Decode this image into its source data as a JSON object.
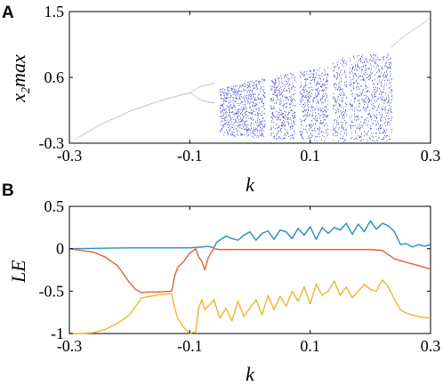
{
  "chart_data": [
    {
      "panel": "A",
      "type": "scatter",
      "subtype": "bifurcation-diagram",
      "xlabel": "k",
      "ylabel_main": "x",
      "ylabel_sub": "2",
      "ylabel_rest": "max",
      "xlim": [
        -0.3,
        0.3
      ],
      "ylim": [
        -0.3,
        1.5
      ],
      "xticks": [
        -0.3,
        -0.1,
        0.1,
        0.3
      ],
      "xtick_labels": [
        "-0.3",
        "-0.1",
        "0.1",
        "0.3"
      ],
      "yticks": [
        -0.3,
        0.6,
        1.5
      ],
      "ytick_labels": [
        "-0.3",
        "0.6",
        "1.5"
      ],
      "colors": {
        "periodic": "#b8b8b8",
        "chaotic": "#5a5ad6"
      },
      "branches": [
        {
          "name": "period-1",
          "x": [
            -0.29,
            -0.25,
            -0.2,
            -0.15,
            -0.12,
            -0.1
          ],
          "y": [
            -0.24,
            -0.05,
            0.14,
            0.28,
            0.35,
            0.39
          ]
        },
        {
          "name": "period-2-upper",
          "x": [
            -0.1,
            -0.085,
            -0.07,
            -0.06
          ],
          "y": [
            0.39,
            0.47,
            0.5,
            0.52
          ]
        },
        {
          "name": "period-2-lower",
          "x": [
            -0.1,
            -0.085,
            -0.07,
            -0.06
          ],
          "y": [
            0.39,
            0.3,
            0.26,
            0.25
          ]
        },
        {
          "name": "tail",
          "x": [
            0.235,
            0.25,
            0.265,
            0.28,
            0.29,
            0.3
          ],
          "y": [
            1.02,
            1.13,
            1.22,
            1.3,
            1.36,
            1.42
          ]
        }
      ],
      "chaos_band": {
        "x": [
          -0.05,
          0.0,
          0.05,
          0.1,
          0.14,
          0.16,
          0.2,
          0.235
        ],
        "y_min": [
          -0.18,
          -0.22,
          -0.24,
          -0.26,
          -0.27,
          -0.28,
          -0.28,
          -0.28
        ],
        "y_max": [
          0.45,
          0.55,
          0.63,
          0.72,
          0.8,
          0.9,
          0.92,
          0.93
        ],
        "windows": [
          [
            0.025,
            0.033
          ],
          [
            0.075,
            0.082
          ],
          [
            0.13,
            0.137
          ],
          [
            0.16,
            0.165
          ]
        ]
      },
      "seed": 7
    },
    {
      "panel": "B",
      "type": "line",
      "xlabel": "k",
      "ylabel": "LE",
      "xlim": [
        -0.3,
        0.3
      ],
      "ylim": [
        -1,
        0.5
      ],
      "xticks": [
        -0.3,
        -0.1,
        0.1,
        0.3
      ],
      "xtick_labels": [
        "-0.3",
        "-0.1",
        "0.1",
        "0.3"
      ],
      "yticks": [
        0.5,
        0,
        -0.5,
        -1
      ],
      "ytick_labels": [
        "0.5",
        "0",
        "-0.5",
        "-1"
      ],
      "series": [
        {
          "color": "#1f8fbf",
          "x": [
            -0.3,
            -0.25,
            -0.2,
            -0.15,
            -0.1,
            -0.08,
            -0.07,
            -0.06,
            -0.055,
            -0.05,
            -0.04,
            -0.03,
            -0.02,
            -0.01,
            0.0,
            0.01,
            0.02,
            0.03,
            0.04,
            0.05,
            0.06,
            0.07,
            0.08,
            0.09,
            0.1,
            0.11,
            0.12,
            0.13,
            0.14,
            0.15,
            0.16,
            0.17,
            0.18,
            0.19,
            0.2,
            0.21,
            0.22,
            0.23,
            0.24,
            0.25,
            0.26,
            0.27,
            0.28,
            0.29,
            0.3
          ],
          "y": [
            0.0,
            0.005,
            0.01,
            0.01,
            0.01,
            0.02,
            0.03,
            0.01,
            0.08,
            0.1,
            0.15,
            0.12,
            0.1,
            0.16,
            0.2,
            0.1,
            0.18,
            0.21,
            0.11,
            0.22,
            0.2,
            0.12,
            0.24,
            0.16,
            0.26,
            0.11,
            0.25,
            0.18,
            0.25,
            0.22,
            0.3,
            0.17,
            0.29,
            0.2,
            0.33,
            0.23,
            0.3,
            0.27,
            0.2,
            0.05,
            0.06,
            0.02,
            0.05,
            0.03,
            0.05
          ]
        },
        {
          "color": "#e0603a",
          "x": [
            -0.3,
            -0.26,
            -0.24,
            -0.22,
            -0.21,
            -0.2,
            -0.19,
            -0.18,
            -0.17,
            -0.15,
            -0.13,
            -0.125,
            -0.12,
            -0.11,
            -0.1,
            -0.09,
            -0.085,
            -0.08,
            -0.075,
            -0.07,
            -0.065,
            -0.06,
            -0.05,
            0.0,
            0.05,
            0.1,
            0.15,
            0.2,
            0.22,
            0.24,
            0.26,
            0.28,
            0.3
          ],
          "y": [
            0.0,
            -0.04,
            -0.1,
            -0.2,
            -0.3,
            -0.4,
            -0.48,
            -0.52,
            -0.51,
            -0.51,
            -0.5,
            -0.32,
            -0.22,
            -0.15,
            -0.05,
            0.0,
            -0.1,
            -0.15,
            -0.25,
            -0.12,
            -0.05,
            0.0,
            -0.01,
            -0.01,
            -0.01,
            -0.01,
            -0.01,
            -0.01,
            -0.02,
            -0.12,
            -0.16,
            -0.2,
            -0.24
          ]
        },
        {
          "color": "#f0b429",
          "x": [
            -0.3,
            -0.28,
            -0.26,
            -0.24,
            -0.22,
            -0.2,
            -0.19,
            -0.18,
            -0.15,
            -0.13,
            -0.125,
            -0.12,
            -0.11,
            -0.1,
            -0.09,
            -0.085,
            -0.08,
            -0.075,
            -0.07,
            -0.065,
            -0.06,
            -0.05,
            -0.04,
            -0.03,
            -0.02,
            -0.01,
            0.0,
            0.01,
            0.02,
            0.03,
            0.04,
            0.05,
            0.06,
            0.07,
            0.08,
            0.09,
            0.1,
            0.11,
            0.12,
            0.13,
            0.14,
            0.15,
            0.16,
            0.17,
            0.18,
            0.19,
            0.2,
            0.21,
            0.22,
            0.23,
            0.24,
            0.25,
            0.26,
            0.27,
            0.28,
            0.29,
            0.3
          ],
          "y": [
            -1.0,
            -1.0,
            -0.99,
            -0.95,
            -0.88,
            -0.78,
            -0.68,
            -0.58,
            -0.54,
            -0.53,
            -0.7,
            -0.82,
            -0.93,
            -1.0,
            -0.98,
            -0.7,
            -0.6,
            -0.72,
            -0.68,
            -0.65,
            -0.6,
            -0.82,
            -0.7,
            -0.85,
            -0.62,
            -0.8,
            -0.7,
            -0.6,
            -0.78,
            -0.55,
            -0.72,
            -0.56,
            -0.68,
            -0.5,
            -0.62,
            -0.45,
            -0.65,
            -0.42,
            -0.55,
            -0.5,
            -0.38,
            -0.55,
            -0.45,
            -0.58,
            -0.5,
            -0.42,
            -0.48,
            -0.5,
            -0.37,
            -0.45,
            -0.6,
            -0.72,
            -0.76,
            -0.78,
            -0.8,
            -0.81,
            -0.82
          ]
        }
      ]
    }
  ]
}
